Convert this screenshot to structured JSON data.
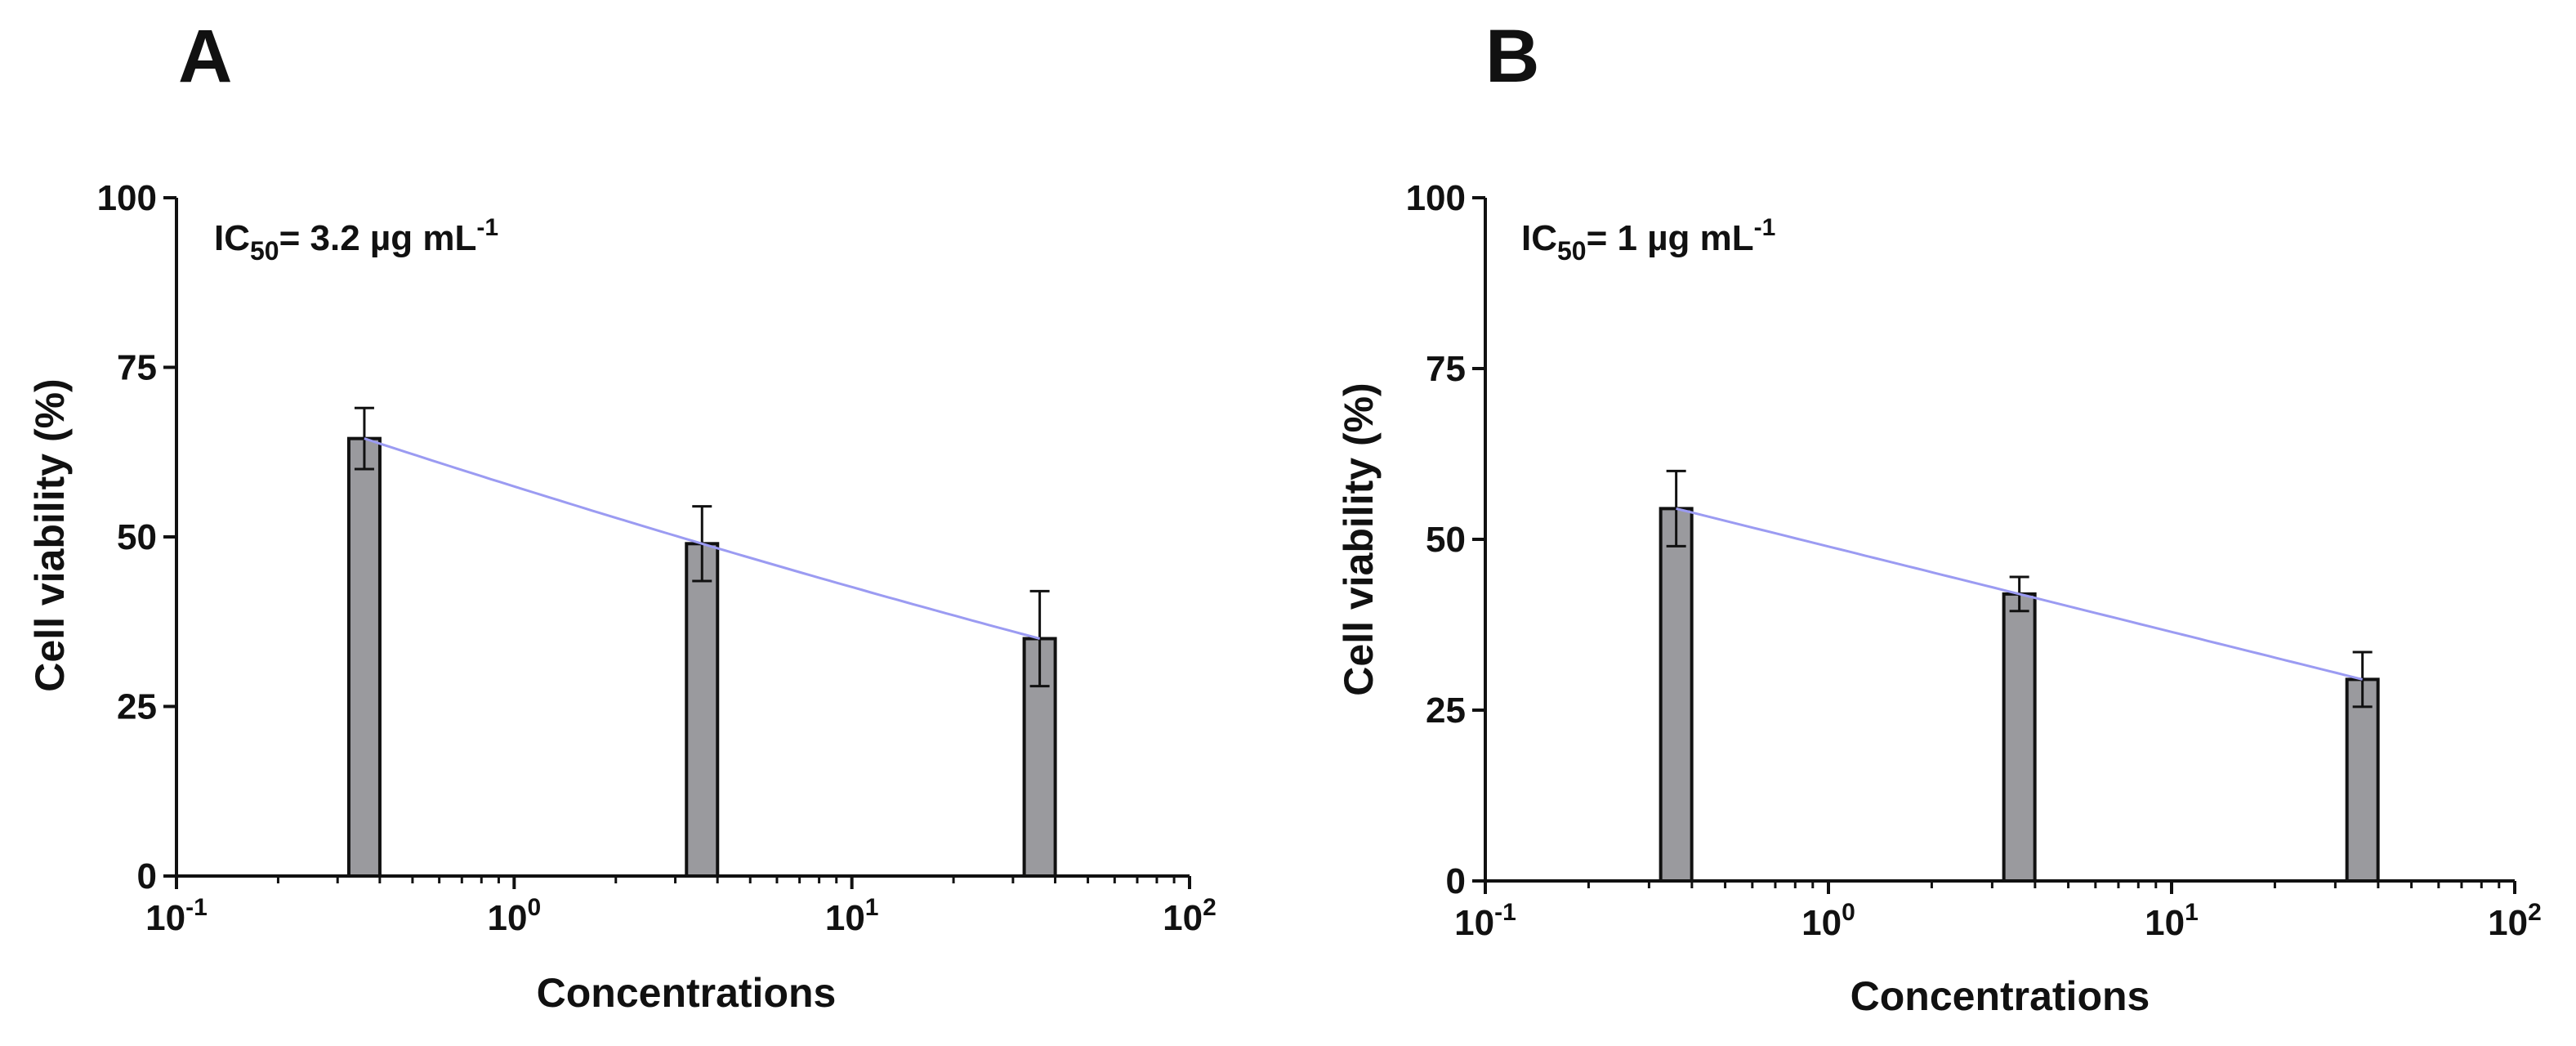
{
  "figure": {
    "colors": {
      "bar_fill": "#9a9a9e",
      "bar_stroke": "#111111",
      "curve": "#9b9bf2",
      "axis": "#111111"
    }
  },
  "chart_data": [
    {
      "panel": "A",
      "type": "bar",
      "title": "",
      "annotation": {
        "prefix": "IC",
        "subscript": "50",
        "text": "= 3.2 µg mL",
        "superscript": "-1"
      },
      "xlabel": "Concentrations",
      "ylabel": "Cell viability (%)",
      "xscale": "log10",
      "xlim": [
        0.1,
        100
      ],
      "ylim": [
        0,
        100
      ],
      "xticks": [
        {
          "value": 0.1,
          "base": "10",
          "exp": "-1"
        },
        {
          "value": 1,
          "base": "10",
          "exp": "0"
        },
        {
          "value": 10,
          "base": "10",
          "exp": "1"
        },
        {
          "value": 100,
          "base": "10",
          "exp": "2"
        }
      ],
      "yticks": [
        {
          "value": 0,
          "label": "0"
        },
        {
          "value": 25,
          "label": "25"
        },
        {
          "value": 50,
          "label": "50"
        },
        {
          "value": 75,
          "label": "75"
        },
        {
          "value": 100,
          "label": "100"
        }
      ],
      "series": [
        {
          "name": "Cell viability",
          "x": [
            0.36,
            3.6,
            36
          ],
          "values": [
            64.5,
            49,
            35
          ],
          "errors": [
            4.5,
            5.5,
            7
          ]
        }
      ],
      "fit_curve": {
        "x": [
          0.36,
          3.6,
          36
        ],
        "y": [
          64.5,
          49,
          35
        ]
      }
    },
    {
      "panel": "B",
      "type": "bar",
      "title": "",
      "annotation": {
        "prefix": "IC",
        "subscript": "50",
        "text": "= 1 µg mL",
        "superscript": "-1"
      },
      "xlabel": "Concentrations",
      "ylabel": "Cell viability (%)",
      "xscale": "log10",
      "xlim": [
        0.1,
        100
      ],
      "ylim": [
        0,
        100
      ],
      "xticks": [
        {
          "value": 0.1,
          "base": "10",
          "exp": "-1"
        },
        {
          "value": 1,
          "base": "10",
          "exp": "0"
        },
        {
          "value": 10,
          "base": "10",
          "exp": "1"
        },
        {
          "value": 100,
          "base": "10",
          "exp": "2"
        }
      ],
      "yticks": [
        {
          "value": 0,
          "label": "0"
        },
        {
          "value": 25,
          "label": "25"
        },
        {
          "value": 50,
          "label": "50"
        },
        {
          "value": 75,
          "label": "75"
        },
        {
          "value": 100,
          "label": "100"
        }
      ],
      "series": [
        {
          "name": "Cell viability",
          "x": [
            0.36,
            3.6,
            36
          ],
          "values": [
            54.5,
            42,
            29.5
          ],
          "errors": [
            5.5,
            2.5,
            4
          ]
        }
      ],
      "fit_curve": {
        "x": [
          0.36,
          3.6,
          36
        ],
        "y": [
          54.5,
          42,
          29.5
        ]
      }
    }
  ]
}
